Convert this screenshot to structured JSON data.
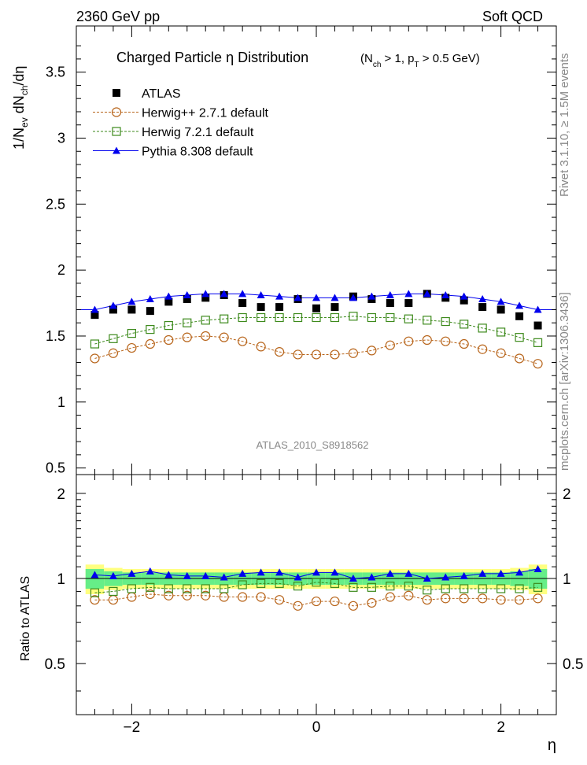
{
  "header": {
    "left": "2360 GeV pp",
    "right": "Soft QCD"
  },
  "side_labels": {
    "rivet": "Rivet 3.1.10, ≥ 1.5M events",
    "mcplots": "mcplots.cern.ch [arXiv:1306.3436]"
  },
  "colors": {
    "atlas": "#000000",
    "herwigpp": "#b8651b",
    "herwig7": "#3d8a1c",
    "pythia": "#0000ee",
    "band_inner": "#66ee88",
    "band_outer": "#ffff80"
  },
  "chart_data": [
    {
      "type": "scatter",
      "title": "Charged Particle  η Distribution",
      "title_suffix": "(N_ch > 1, p_T > 0.5 GeV)",
      "ylabel": "1/N_ev dN_ch/dη",
      "xlabel": "η",
      "watermark": "ATLAS_2010_S8918562",
      "xlim": [
        -2.6,
        2.6
      ],
      "ylim": [
        0.45,
        3.85
      ],
      "yticks": [
        "0.5",
        "1",
        "1.5",
        "2",
        "2.5",
        "3",
        "3.5"
      ],
      "ytick_values": [
        0.5,
        1,
        1.5,
        2,
        2.5,
        3,
        3.5
      ],
      "legend_position": "top-left",
      "x": [
        -2.4,
        -2.2,
        -2.0,
        -1.8,
        -1.6,
        -1.4,
        -1.2,
        -1.0,
        -0.8,
        -0.6,
        -0.4,
        -0.2,
        0.0,
        0.2,
        0.4,
        0.6,
        0.8,
        1.0,
        1.2,
        1.4,
        1.6,
        1.8,
        2.0,
        2.2,
        2.4
      ],
      "series": [
        {
          "name": "ATLAS",
          "marker": "filled-square",
          "values": [
            1.66,
            1.7,
            1.7,
            1.69,
            1.76,
            1.78,
            1.79,
            1.81,
            1.75,
            1.72,
            1.72,
            1.78,
            1.71,
            1.72,
            1.8,
            1.78,
            1.75,
            1.75,
            1.82,
            1.79,
            1.77,
            1.72,
            1.7,
            1.65,
            1.58
          ]
        },
        {
          "name": "Herwig++ 2.7.1 default",
          "marker": "open-circle",
          "values": [
            1.33,
            1.37,
            1.41,
            1.44,
            1.47,
            1.49,
            1.5,
            1.49,
            1.46,
            1.42,
            1.38,
            1.36,
            1.36,
            1.36,
            1.37,
            1.39,
            1.43,
            1.46,
            1.47,
            1.46,
            1.44,
            1.4,
            1.37,
            1.33,
            1.29
          ]
        },
        {
          "name": "Herwig 7.2.1 default",
          "marker": "open-square",
          "values": [
            1.44,
            1.48,
            1.52,
            1.55,
            1.58,
            1.6,
            1.62,
            1.63,
            1.64,
            1.64,
            1.64,
            1.64,
            1.64,
            1.64,
            1.65,
            1.64,
            1.64,
            1.63,
            1.62,
            1.61,
            1.59,
            1.56,
            1.53,
            1.49,
            1.45
          ]
        },
        {
          "name": "Pythia 8.308 default",
          "marker": "filled-triangle",
          "values": [
            1.7,
            1.73,
            1.76,
            1.78,
            1.8,
            1.81,
            1.82,
            1.82,
            1.82,
            1.81,
            1.8,
            1.79,
            1.79,
            1.79,
            1.79,
            1.8,
            1.81,
            1.82,
            1.82,
            1.81,
            1.8,
            1.78,
            1.76,
            1.73,
            1.7
          ]
        }
      ]
    },
    {
      "type": "scatter",
      "ylabel": "Ratio to ATLAS",
      "xlabel": "η",
      "xlim": [
        -2.6,
        2.6
      ],
      "ylim": [
        0.33,
        2.33
      ],
      "xticks": [
        "−2",
        "0",
        "2"
      ],
      "xtick_values": [
        -2,
        0,
        2
      ],
      "yticks": [
        "0.5",
        "1",
        "2"
      ],
      "ytick_values": [
        0.5,
        1,
        2
      ],
      "x": [
        -2.4,
        -2.2,
        -2.0,
        -1.8,
        -1.6,
        -1.4,
        -1.2,
        -1.0,
        -0.8,
        -0.6,
        -0.4,
        -0.2,
        0.0,
        0.2,
        0.4,
        0.6,
        0.8,
        1.0,
        1.2,
        1.4,
        1.6,
        1.8,
        2.0,
        2.2,
        2.4
      ],
      "bands": {
        "inner_halfwidth": [
          0.08,
          0.06,
          0.05,
          0.05,
          0.05,
          0.05,
          0.05,
          0.05,
          0.05,
          0.05,
          0.05,
          0.05,
          0.05,
          0.05,
          0.05,
          0.05,
          0.05,
          0.05,
          0.05,
          0.05,
          0.05,
          0.05,
          0.05,
          0.06,
          0.08
        ],
        "outer_halfwidth": [
          0.12,
          0.09,
          0.08,
          0.08,
          0.08,
          0.08,
          0.08,
          0.08,
          0.08,
          0.08,
          0.08,
          0.08,
          0.08,
          0.08,
          0.08,
          0.08,
          0.08,
          0.08,
          0.08,
          0.08,
          0.08,
          0.08,
          0.08,
          0.09,
          0.12
        ]
      },
      "series": [
        {
          "name": "Herwig++ 2.7.1 default",
          "marker": "open-circle",
          "values": [
            0.84,
            0.84,
            0.86,
            0.88,
            0.87,
            0.87,
            0.87,
            0.86,
            0.86,
            0.86,
            0.84,
            0.8,
            0.83,
            0.83,
            0.8,
            0.82,
            0.86,
            0.87,
            0.84,
            0.85,
            0.85,
            0.85,
            0.84,
            0.84,
            0.85
          ]
        },
        {
          "name": "Herwig 7.2.1 default",
          "marker": "open-square",
          "values": [
            0.89,
            0.9,
            0.92,
            0.93,
            0.92,
            0.92,
            0.92,
            0.92,
            0.95,
            0.96,
            0.96,
            0.94,
            0.97,
            0.96,
            0.93,
            0.93,
            0.94,
            0.94,
            0.91,
            0.92,
            0.92,
            0.92,
            0.92,
            0.92,
            0.93
          ]
        },
        {
          "name": "Pythia 8.308 default",
          "marker": "filled-triangle",
          "values": [
            1.03,
            1.02,
            1.04,
            1.06,
            1.03,
            1.02,
            1.02,
            1.01,
            1.04,
            1.05,
            1.05,
            1.01,
            1.05,
            1.05,
            1.0,
            1.01,
            1.04,
            1.04,
            1.0,
            1.01,
            1.02,
            1.04,
            1.04,
            1.05,
            1.08
          ]
        }
      ]
    }
  ]
}
